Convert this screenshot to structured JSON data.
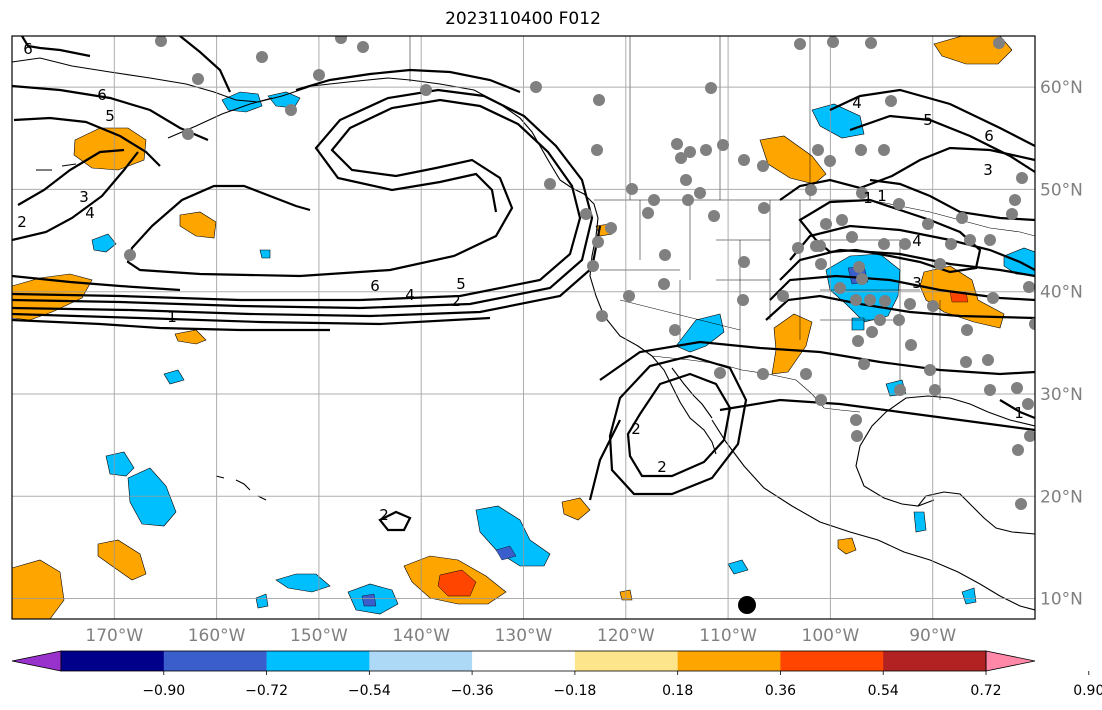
{
  "title": "2023110400 F012",
  "map": {
    "projection": "PlateCarree",
    "lon_range": [
      -180,
      -80
    ],
    "lat_range": [
      8,
      65
    ],
    "grid": true,
    "lon_ticks": [
      "170°W",
      "160°W",
      "150°W",
      "140°W",
      "130°W",
      "120°W",
      "110°W",
      "100°W",
      "90°W"
    ],
    "lat_ticks": [
      "60°N",
      "50°N",
      "40°N",
      "30°N",
      "20°N",
      "10°N"
    ]
  },
  "colorbar": {
    "orientation": "horizontal",
    "extend": "both",
    "tick_labels": [
      "−0.90",
      "−0.72",
      "−0.54",
      "−0.36",
      "−0.18",
      "0.18",
      "0.36",
      "0.54",
      "0.72",
      "0.90"
    ],
    "colors": [
      "#9932cc",
      "#00008b",
      "#3a5fcd",
      "#00bfff",
      "#add8f6",
      "#ffffff",
      "#fce58a",
      "#ffa500",
      "#ff4500",
      "#b22222",
      "#ff88a8"
    ]
  },
  "contour_labels": [
    "6",
    "6",
    "5",
    "3",
    "4",
    "2",
    "6",
    "5",
    "4",
    "2",
    "1",
    "4",
    "5",
    "6",
    "3",
    "1",
    "4",
    "3",
    "2",
    "1",
    "2",
    "2",
    "1"
  ],
  "colors": {
    "contour": "#000000",
    "grid": "#999999",
    "coast": "#000000",
    "station": "#808080"
  }
}
